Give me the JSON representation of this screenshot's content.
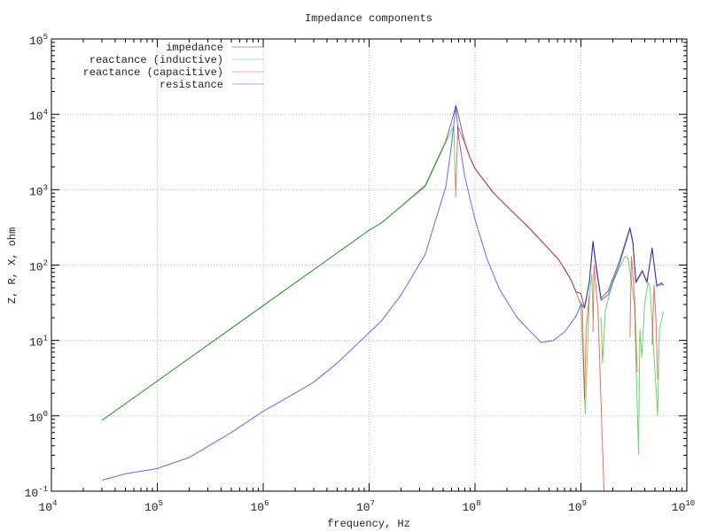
{
  "chart_data": {
    "type": "line",
    "title": "Impedance components",
    "xlabel": "frequency, Hz",
    "ylabel": "Z, R, X, ohm",
    "xscale": "log",
    "yscale": "log",
    "xlim": [
      10000,
      10000000000
    ],
    "ylim": [
      0.1,
      100000
    ],
    "grid": true,
    "legend_position": "top-left",
    "x_ticks": [
      {
        "base": "10",
        "exp": "4"
      },
      {
        "base": "10",
        "exp": "5"
      },
      {
        "base": "10",
        "exp": "6"
      },
      {
        "base": "10",
        "exp": "7"
      },
      {
        "base": "10",
        "exp": "8"
      },
      {
        "base": "10",
        "exp": "9"
      },
      {
        "base": "10",
        "exp": "10"
      }
    ],
    "y_ticks": [
      {
        "base": "10",
        "exp": "-1"
      },
      {
        "base": "10",
        "exp": "0"
      },
      {
        "base": "10",
        "exp": "1"
      },
      {
        "base": "10",
        "exp": "2"
      },
      {
        "base": "10",
        "exp": "3"
      },
      {
        "base": "10",
        "exp": "4"
      },
      {
        "base": "10",
        "exp": "5"
      }
    ],
    "series": [
      {
        "name": "impedance",
        "color": "#000000",
        "points": [
          [
            30000.0,
            0.87
          ],
          [
            100000.0,
            2.9
          ],
          [
            1000000.0,
            29
          ],
          [
            10000000.0,
            290
          ],
          [
            13000000.0,
            360
          ],
          [
            20000000.0,
            600
          ],
          [
            34000000.0,
            1150
          ],
          [
            53000000.0,
            4400
          ],
          [
            60000000.0,
            8000
          ],
          [
            66000000.0,
            13000
          ],
          [
            70000000.0,
            9500
          ],
          [
            80000000.0,
            4200
          ],
          [
            89000000.0,
            2700
          ],
          [
            100000000.0,
            1900
          ],
          [
            150000000.0,
            900
          ],
          [
            200000000.0,
            600
          ],
          [
            320000000.0,
            316
          ],
          [
            450000000.0,
            190
          ],
          [
            620000000.0,
            117
          ],
          [
            800000000.0,
            65
          ],
          [
            900000000.0,
            44
          ],
          [
            1000000000.0,
            42
          ],
          [
            1080000000.0,
            27
          ],
          [
            1200000000.0,
            60
          ],
          [
            1300000000.0,
            210
          ],
          [
            1380000000.0,
            110
          ],
          [
            1550000000.0,
            36
          ],
          [
            1800000000.0,
            45
          ],
          [
            2300000000.0,
            110
          ],
          [
            2900000000.0,
            316
          ],
          [
            3100000000.0,
            200
          ],
          [
            3300000000.0,
            60
          ],
          [
            3800000000.0,
            85
          ],
          [
            4200000000.0,
            60
          ],
          [
            4700000000.0,
            170
          ],
          [
            5200000000.0,
            54
          ],
          [
            5800000000.0,
            58
          ],
          [
            6000000000.0,
            54
          ]
        ]
      },
      {
        "name": "reactance (inductive)",
        "color": "#00c000",
        "points": [
          [
            30000.0,
            0.87
          ],
          [
            100000.0,
            2.9
          ],
          [
            1000000.0,
            29
          ],
          [
            10000000.0,
            290
          ],
          [
            13000000.0,
            360
          ],
          [
            20000000.0,
            600
          ],
          [
            34000000.0,
            1100
          ],
          [
            53000000.0,
            4300
          ],
          [
            63000000.0,
            6900
          ],
          [
            65500000.0,
            1000
          ],
          null,
          [
            950000000.0,
            33
          ],
          [
            1000000000.0,
            30
          ],
          [
            1100000000.0,
            1.07
          ],
          [
            1200000000.0,
            40
          ],
          [
            1270000000.0,
            76
          ],
          [
            1300000000.0,
            20
          ],
          null,
          [
            1550000000.0,
            20
          ],
          [
            1600000000.0,
            5
          ],
          [
            1700000000.0,
            25
          ],
          [
            2000000000.0,
            60
          ],
          [
            2600000000.0,
            130
          ],
          [
            2800000000.0,
            120
          ],
          [
            3200000000.0,
            30
          ],
          [
            3500000000.0,
            0.31
          ],
          [
            3600000000.0,
            14
          ],
          [
            3750000000.0,
            6
          ],
          [
            4000000000.0,
            30
          ],
          [
            4300000000.0,
            58
          ],
          [
            4500000000.0,
            50
          ],
          [
            4800000000.0,
            10
          ],
          [
            5300000000.0,
            1.0
          ],
          [
            5500000000.0,
            14
          ],
          [
            6000000000.0,
            24
          ]
        ]
      },
      {
        "name": "reactance (capacitive)",
        "color": "#ff0000",
        "points": [
          [
            65500000.0,
            800
          ],
          [
            69000000.0,
            6900
          ],
          [
            80000000.0,
            4200
          ],
          [
            89000000.0,
            2700
          ],
          [
            100000000.0,
            1900
          ],
          [
            150000000.0,
            900
          ],
          [
            200000000.0,
            600
          ],
          [
            320000000.0,
            316
          ],
          [
            450000000.0,
            190
          ],
          [
            620000000.0,
            117
          ],
          [
            800000000.0,
            65
          ],
          [
            900000000.0,
            44
          ],
          [
            950000000.0,
            35
          ],
          [
            1030000000.0,
            30
          ],
          [
            1080000000.0,
            1.7
          ],
          [
            1120000000.0,
            14
          ],
          [
            1200000000.0,
            40
          ],
          null,
          [
            1300000000.0,
            13
          ],
          [
            1330000000.0,
            100
          ],
          [
            1450000000.0,
            25
          ],
          [
            1650000000.0,
            0.1
          ],
          null,
          [
            2900000000.0,
            11
          ],
          [
            3000000000.0,
            130
          ],
          [
            3200000000.0,
            40
          ],
          [
            3400000000.0,
            3.8
          ],
          null,
          [
            4700000000.0,
            8.7
          ],
          [
            4900000000.0,
            54
          ],
          [
            5100000000.0,
            20
          ],
          [
            5300000000.0,
            3
          ]
        ]
      },
      {
        "name": "resistance",
        "color": "#0000ff",
        "points": [
          [
            30000.0,
            0.14
          ],
          [
            50000.0,
            0.17
          ],
          [
            100000.0,
            0.2
          ],
          [
            200000.0,
            0.28
          ],
          [
            500000.0,
            0.6
          ],
          [
            1000000.0,
            1.15
          ],
          [
            2000000.0,
            2
          ],
          [
            3000000.0,
            2.8
          ],
          [
            5000000.0,
            5
          ],
          [
            13000000.0,
            18
          ],
          [
            20000000.0,
            40
          ],
          [
            34000000.0,
            140
          ],
          [
            40000000.0,
            300
          ],
          [
            53000000.0,
            1100
          ],
          [
            60000000.0,
            4000
          ],
          [
            66000000.0,
            13000
          ],
          [
            70000000.0,
            5000
          ],
          [
            80000000.0,
            1500
          ],
          [
            100000000.0,
            400
          ],
          [
            130000000.0,
            120
          ],
          [
            170000000.0,
            48
          ],
          [
            250000000.0,
            20
          ],
          [
            420000000.0,
            9.4
          ],
          [
            550000000.0,
            10
          ],
          [
            700000000.0,
            13
          ],
          [
            900000000.0,
            21
          ],
          [
            1000000000.0,
            30
          ],
          [
            1080000000.0,
            27
          ],
          [
            1200000000.0,
            60
          ],
          [
            1300000000.0,
            200
          ],
          [
            1380000000.0,
            100
          ],
          [
            1550000000.0,
            34
          ],
          [
            1800000000.0,
            40
          ],
          [
            2300000000.0,
            100
          ],
          [
            2900000000.0,
            300
          ],
          [
            3100000000.0,
            190
          ],
          [
            3300000000.0,
            58
          ],
          [
            3800000000.0,
            82
          ],
          [
            4200000000.0,
            58
          ],
          [
            4700000000.0,
            165
          ],
          [
            5200000000.0,
            52
          ],
          [
            5800000000.0,
            56
          ],
          [
            6000000000.0,
            54
          ]
        ]
      }
    ]
  }
}
